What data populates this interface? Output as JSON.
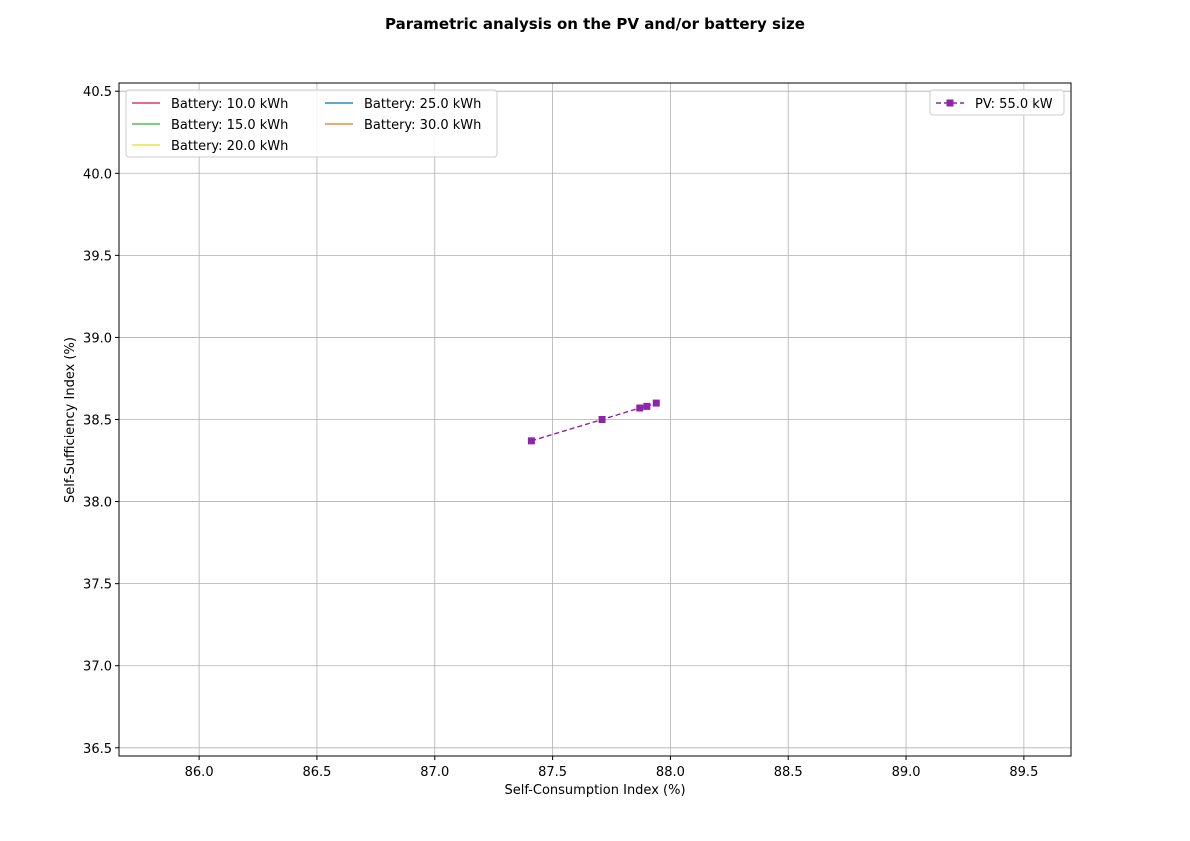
{
  "chart_data": {
    "type": "line",
    "title": "Parametric analysis on the PV and/or battery size",
    "xlabel": "Self-Consumption Index (%)",
    "ylabel": "Self-Sufficiency Index (%)",
    "xlim": [
      85.66,
      89.7
    ],
    "ylim": [
      36.45,
      40.55
    ],
    "xticks": [
      "86.0",
      "86.5",
      "87.0",
      "87.5",
      "88.0",
      "88.5",
      "89.0",
      "89.5"
    ],
    "yticks": [
      "36.5",
      "37.0",
      "37.5",
      "38.0",
      "38.5",
      "39.0",
      "39.5",
      "40.0",
      "40.5"
    ],
    "grid": true,
    "battery_legend": {
      "placement": "top-left",
      "entries": [
        {
          "name": "Battery: 10.0 kWh",
          "color": "#dc3c64"
        },
        {
          "name": "Battery: 15.0 kWh",
          "color": "#50c050"
        },
        {
          "name": "Battery: 20.0 kWh",
          "color": "#f0e040"
        },
        {
          "name": "Battery: 25.0 kWh",
          "color": "#2a8cb8"
        },
        {
          "name": "Battery: 30.0 kWh",
          "color": "#f08c40"
        }
      ]
    },
    "series": [
      {
        "name": "PV: 55.0 kW",
        "color": "#8e24aa",
        "linestyle": "dashed",
        "marker": "square",
        "legend_placement": "top-right",
        "x": [
          87.41,
          87.71,
          87.87,
          87.9,
          87.94
        ],
        "y": [
          38.37,
          38.5,
          38.57,
          38.58,
          38.6
        ]
      }
    ]
  }
}
